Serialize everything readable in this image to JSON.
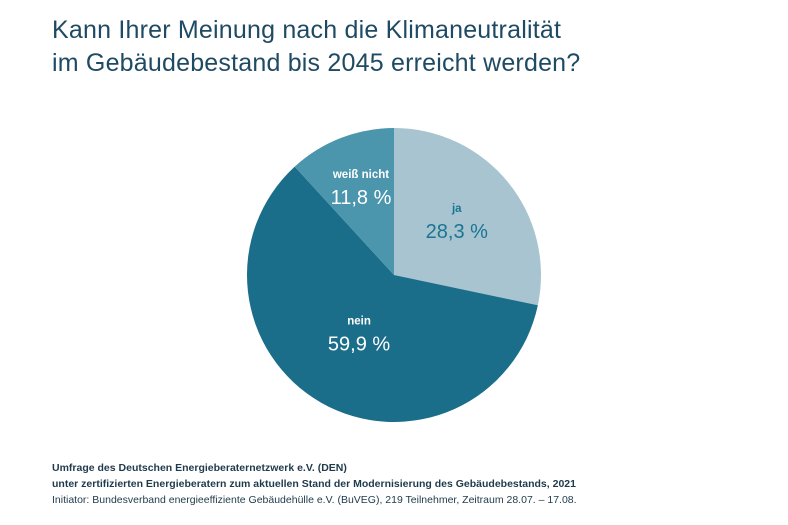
{
  "title": {
    "line1": "Kann Ihrer Meinung nach die Klimaneutralität",
    "line2": "im Gebäudebestand bis 2045 erreicht werden?"
  },
  "chart_data": {
    "type": "pie",
    "title": "Kann Ihrer Meinung nach die Klimaneutralität im Gebäudebestand bis 2045 erreicht werden?",
    "slices": [
      {
        "label": "ja",
        "value": 28.3,
        "value_text": "28,3 %",
        "color": "#a7c4d0",
        "text_color": "#1a7592"
      },
      {
        "label": "nein",
        "value": 59.9,
        "value_text": "59,9 %",
        "color": "#1a6e8a",
        "text_color": "#ffffff"
      },
      {
        "label": "weiß nicht",
        "value": 11.8,
        "value_text": "11,8 %",
        "color": "#4b95ad",
        "text_color": "#ffffff"
      }
    ],
    "start": "12 o'clock",
    "direction": "clockwise"
  },
  "footer": {
    "line1": "Umfrage des Deutschen Energieberaternetzwerk e.V. (DEN)",
    "line2": "unter zertifizierten Energieberatern zum aktuellen Stand der Modernisierung des Gebäudebestands, 2021",
    "line3": "Initiator: Bundesverband energieeffiziente Gebäudehülle e.V. (BuVEG), 219 Teilnehmer, Zeitraum 28.07. – 17.08."
  }
}
